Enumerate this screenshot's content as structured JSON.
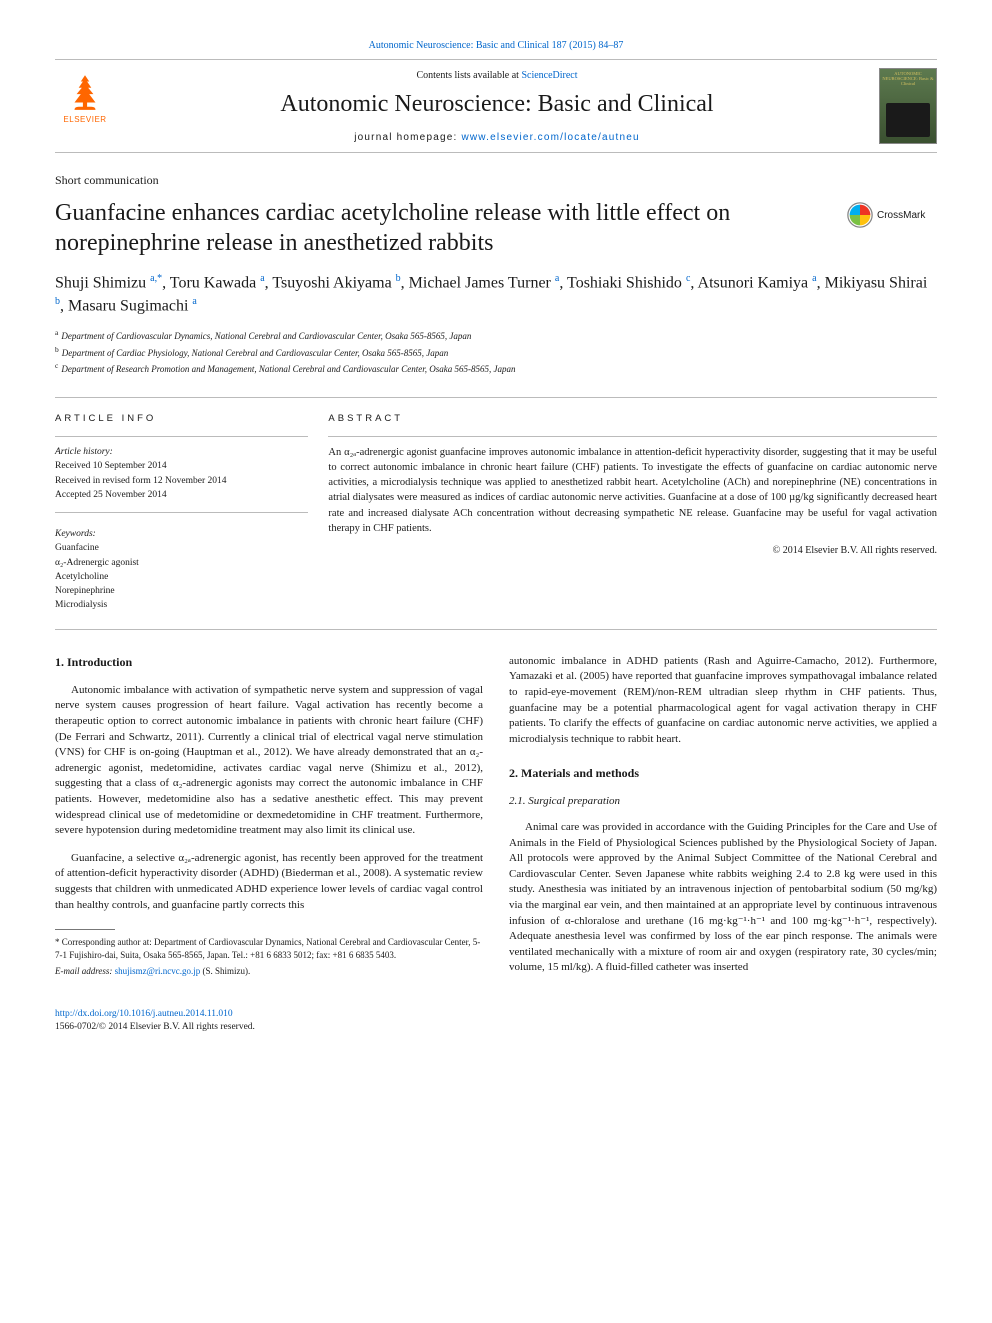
{
  "top_citation": "Autonomic Neuroscience: Basic and Clinical 187 (2015) 84–87",
  "masthead": {
    "contents_prefix": "Contents lists available at ",
    "contents_link": "ScienceDirect",
    "journal_title": "Autonomic Neuroscience: Basic and Clinical",
    "homepage_label": "journal homepage: ",
    "homepage_url": "www.elsevier.com/locate/autneu",
    "publisher_name": "ELSEVIER",
    "cover_title": "AUTONOMIC NEUROSCIENCE: Basic & Clinical"
  },
  "article_type": "Short communication",
  "title": "Guanfacine enhances cardiac acetylcholine release with little effect on norepinephrine release in anesthetized rabbits",
  "crossmark_label": "CrossMark",
  "authors_html": "Shuji Shimizu <sup>a,</sup><sup class=\"star\">*</sup>, Toru Kawada <sup>a</sup>, Tsuyoshi Akiyama <sup>b</sup>, Michael James Turner <sup>a</sup>, Toshiaki Shishido <sup>c</sup>, Atsunori Kamiya <sup>a</sup>, Mikiyasu Shirai <sup>b</sup>, Masaru Sugimachi <sup>a</sup>",
  "affiliations": [
    {
      "key": "a",
      "text": "Department of Cardiovascular Dynamics, National Cerebral and Cardiovascular Center, Osaka 565-8565, Japan"
    },
    {
      "key": "b",
      "text": "Department of Cardiac Physiology, National Cerebral and Cardiovascular Center, Osaka 565-8565, Japan"
    },
    {
      "key": "c",
      "text": "Department of Research Promotion and Management, National Cerebral and Cardiovascular Center, Osaka 565-8565, Japan"
    }
  ],
  "article_info": {
    "heading": "ARTICLE INFO",
    "history_label": "Article history:",
    "received": "Received 10 September 2014",
    "revised": "Received in revised form 12 November 2014",
    "accepted": "Accepted 25 November 2014",
    "keywords_label": "Keywords:",
    "keywords": [
      "Guanfacine",
      "α₂-Adrenergic agonist",
      "Acetylcholine",
      "Norepinephrine",
      "Microdialysis"
    ]
  },
  "abstract": {
    "heading": "ABSTRACT",
    "text": "An α₂ₐ-adrenergic agonist guanfacine improves autonomic imbalance in attention-deficit hyperactivity disorder, suggesting that it may be useful to correct autonomic imbalance in chronic heart failure (CHF) patients. To investigate the effects of guanfacine on cardiac autonomic nerve activities, a microdialysis technique was applied to anesthetized rabbit heart. Acetylcholine (ACh) and norepinephrine (NE) concentrations in atrial dialysates were measured as indices of cardiac autonomic nerve activities. Guanfacine at a dose of 100 µg/kg significantly decreased heart rate and increased dialysate ACh concentration without decreasing sympathetic NE release. Guanfacine may be useful for vagal activation therapy in CHF patients.",
    "copyright": "© 2014 Elsevier B.V. All rights reserved."
  },
  "sections": {
    "s1_heading": "1. Introduction",
    "s1_p1": "Autonomic imbalance with activation of sympathetic nerve system and suppression of vagal nerve system causes progression of heart failure. Vagal activation has recently become a therapeutic option to correct autonomic imbalance in patients with chronic heart failure (CHF) (De Ferrari and Schwartz, 2011). Currently a clinical trial of electrical vagal nerve stimulation (VNS) for CHF is on-going (Hauptman et al., 2012). We have already demonstrated that an α₂-adrenergic agonist, medetomidine, activates cardiac vagal nerve (Shimizu et al., 2012), suggesting that a class of α₂-adrenergic agonists may correct the autonomic imbalance in CHF patients. However, medetomidine also has a sedative anesthetic effect. This may prevent widespread clinical use of medetomidine or dexmedetomidine in CHF treatment. Furthermore, severe hypotension during medetomidine treatment may also limit its clinical use.",
    "s1_p2": "Guanfacine, a selective α₂ₐ-adrenergic agonist, has recently been approved for the treatment of attention-deficit hyperactivity disorder (ADHD) (Biederman et al., 2008). A systematic review suggests that children with unmedicated ADHD experience lower levels of cardiac vagal control than healthy controls, and guanfacine partly corrects this",
    "s1_p3": "autonomic imbalance in ADHD patients (Rash and Aguirre-Camacho, 2012). Furthermore, Yamazaki et al. (2005) have reported that guanfacine improves sympathovagal imbalance related to rapid-eye-movement (REM)/non-REM ultradian sleep rhythm in CHF patients. Thus, guanfacine may be a potential pharmacological agent for vagal activation therapy in CHF patients. To clarify the effects of guanfacine on cardiac autonomic nerve activities, we applied a microdialysis technique to rabbit heart.",
    "s2_heading": "2. Materials and methods",
    "s2_1_heading": "2.1. Surgical preparation",
    "s2_1_p1": "Animal care was provided in accordance with the Guiding Principles for the Care and Use of Animals in the Field of Physiological Sciences published by the Physiological Society of Japan. All protocols were approved by the Animal Subject Committee of the National Cerebral and Cardiovascular Center. Seven Japanese white rabbits weighing 2.4 to 2.8 kg were used in this study. Anesthesia was initiated by an intravenous injection of pentobarbital sodium (50 mg/kg) via the marginal ear vein, and then maintained at an appropriate level by continuous intravenous infusion of α-chloralose and urethane (16 mg·kg⁻¹·h⁻¹ and 100 mg·kg⁻¹·h⁻¹, respectively). Adequate anesthesia level was confirmed by loss of the ear pinch response. The animals were ventilated mechanically with a mixture of room air and oxygen (respiratory rate, 30 cycles/min; volume, 15 ml/kg). A fluid-filled catheter was inserted"
  },
  "footnotes": {
    "corr": "* Corresponding author at: Department of Cardiovascular Dynamics, National Cerebral and Cardiovascular Center, 5-7-1 Fujishiro-dai, Suita, Osaka 565-8565, Japan. Tel.: +81 6 6833 5012; fax: +81 6 6835 5403.",
    "email_label": "E-mail address: ",
    "email": "shujismz@ri.ncvc.go.jp",
    "email_suffix": " (S. Shimizu)."
  },
  "bottom": {
    "doi": "http://dx.doi.org/10.1016/j.autneu.2014.11.010",
    "issn_cr": "1566-0702/© 2014 Elsevier B.V. All rights reserved."
  },
  "colors": {
    "link": "#0066cc",
    "elsevier_orange": "#ff6600",
    "rule": "#bbbbbb",
    "crossmark_red": "#ee3524",
    "crossmark_yellow": "#ffc20e",
    "crossmark_blue": "#00aeef",
    "crossmark_green": "#7ac143",
    "cover_bg_top": "#5d7a4f",
    "cover_bg_bot": "#3a5030",
    "cover_text": "#d4c060"
  }
}
